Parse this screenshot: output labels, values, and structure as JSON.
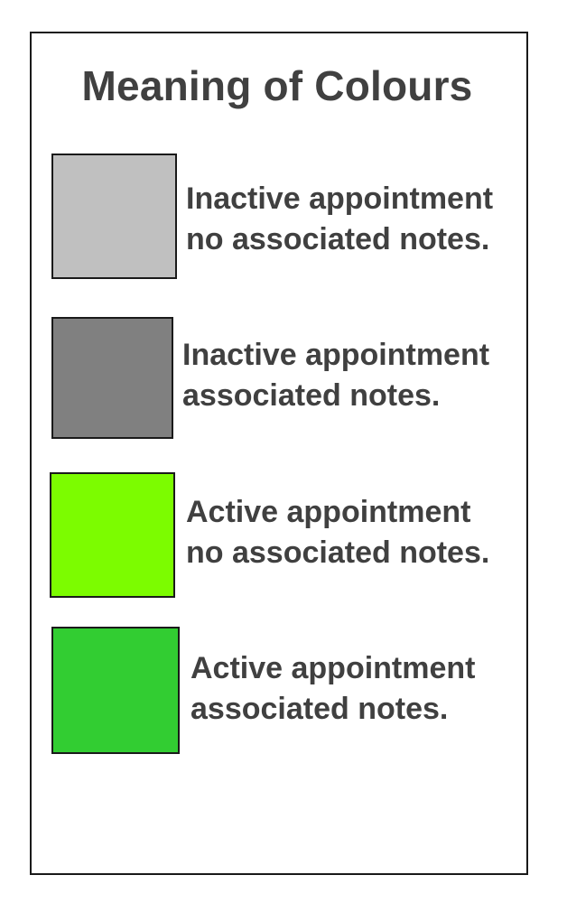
{
  "legend": {
    "title": "Meaning of Colours",
    "items": [
      {
        "color": "#c0c0c0",
        "line1": "Inactive appointment",
        "line2": "no associated notes."
      },
      {
        "color": "#808080",
        "line1": "Inactive appointment",
        "line2": "associated notes."
      },
      {
        "color": "#7cfc00",
        "line1": "Active appointment",
        "line2": "no associated notes."
      },
      {
        "color": "#32cd32",
        "line1": "Active appointment",
        "line2": "associated notes."
      }
    ]
  }
}
